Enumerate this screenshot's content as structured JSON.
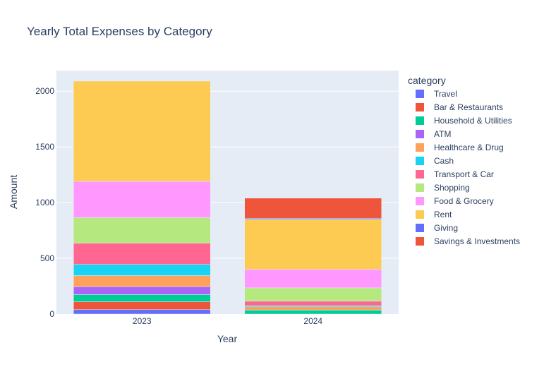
{
  "chart_data": {
    "type": "bar",
    "barmode": "stack",
    "title": "Yearly Total Expenses by Category",
    "xlabel": "Year",
    "ylabel": "Amount",
    "categories": [
      "2023",
      "2024"
    ],
    "ylim": [
      0,
      2185
    ],
    "yticks": [
      0,
      500,
      1000,
      1500,
      2000
    ],
    "grid": true,
    "legend_title": "category",
    "legend_position": "right",
    "series": [
      {
        "name": "Travel",
        "color": "#636efa",
        "values": [
          40,
          0
        ]
      },
      {
        "name": "Bar & Restaurants",
        "color": "#EF553B",
        "values": [
          70,
          0
        ]
      },
      {
        "name": "Household & Utilities",
        "color": "#00cc96",
        "values": [
          65,
          35
        ]
      },
      {
        "name": "ATM",
        "color": "#ab63fa",
        "values": [
          70,
          0
        ]
      },
      {
        "name": "Healthcare & Drug",
        "color": "#FFA15A",
        "values": [
          100,
          30
        ]
      },
      {
        "name": "Cash",
        "color": "#19d3f3",
        "values": [
          100,
          10
        ]
      },
      {
        "name": "Transport & Car",
        "color": "#FF6692",
        "values": [
          190,
          40
        ]
      },
      {
        "name": "Shopping",
        "color": "#B6E880",
        "values": [
          230,
          120
        ]
      },
      {
        "name": "Food & Grocery",
        "color": "#FF97FF",
        "values": [
          325,
          165
        ]
      },
      {
        "name": "Rent",
        "color": "#FECB52",
        "values": [
          900,
          450
        ]
      },
      {
        "name": "Giving",
        "color": "#636efa",
        "values": [
          0,
          10
        ]
      },
      {
        "name": "Savings & Investments",
        "color": "#EF553B",
        "values": [
          0,
          180
        ]
      }
    ]
  }
}
